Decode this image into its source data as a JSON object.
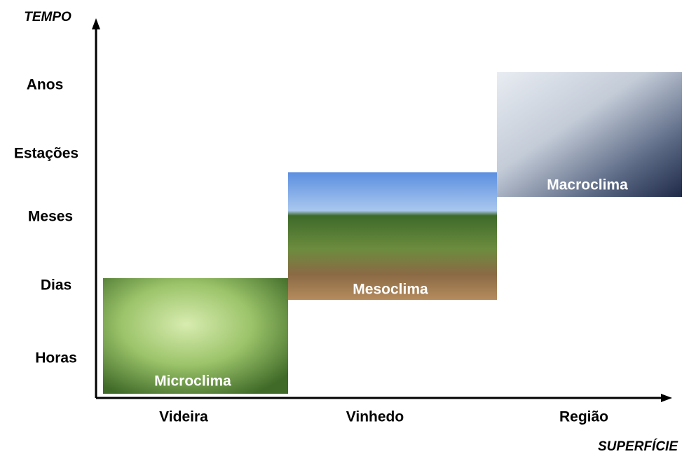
{
  "y_axis": {
    "title": "TEMPO",
    "labels": [
      "Anos",
      "Estações",
      "Meses",
      "Dias",
      "Horas"
    ]
  },
  "x_axis": {
    "title": "SUPERFÍCIE",
    "labels": [
      "Videira",
      "Vinhedo",
      "Região"
    ]
  },
  "regions": [
    {
      "label": "Microclima"
    },
    {
      "label": "Mesoclima"
    },
    {
      "label": "Macroclima"
    }
  ]
}
